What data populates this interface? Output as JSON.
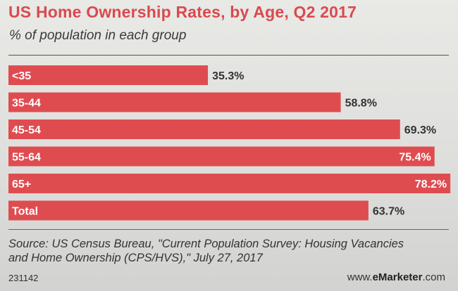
{
  "title": "US Home Ownership Rates, by Age, Q2 2017",
  "subtitle": "% of population in each group",
  "colors": {
    "bar": "#df4c50",
    "bar_total": "#df4c50",
    "label_inside": "#ffffff",
    "label_outside": "#333333",
    "title": "#d94a4e"
  },
  "chart_data": {
    "type": "bar",
    "orientation": "horizontal",
    "title": "US Home Ownership Rates, by Age, Q2 2017",
    "subtitle": "% of population in each group",
    "categories": [
      "<35",
      "35-44",
      "45-54",
      "55-64",
      "65+",
      "Total"
    ],
    "values": [
      35.3,
      58.8,
      69.3,
      75.4,
      78.2,
      63.7
    ],
    "value_labels": [
      "35.3%",
      "58.8%",
      "69.3%",
      "75.4%",
      "78.2%",
      "63.7%"
    ],
    "xlim": [
      0,
      80
    ],
    "unit": "%"
  },
  "footer": {
    "source_line1": "Source: US Census Bureau, \"Current Population Survey: Housing Vacancies",
    "source_line2": "and Home Ownership (CPS/HVS),\" July 27, 2017",
    "chart_id": "231142",
    "brand_prefix": "www.",
    "brand_name": "eMarketer",
    "brand_suffix": ".com"
  }
}
